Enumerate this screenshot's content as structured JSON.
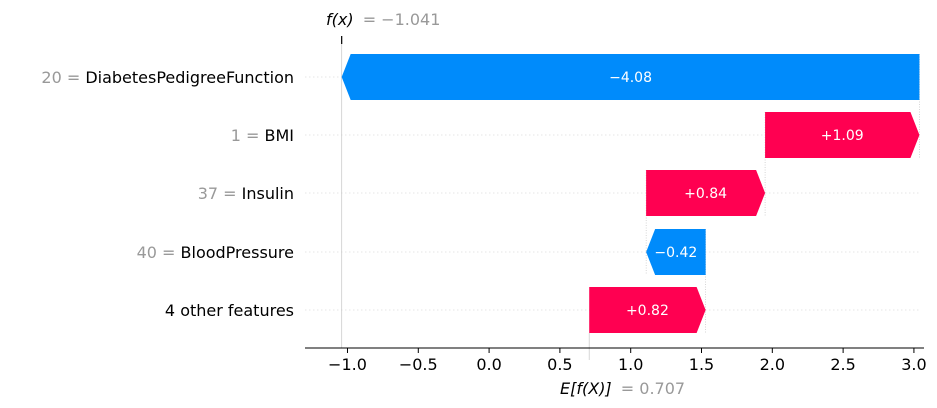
{
  "chart_data": {
    "type": "waterfall",
    "title": "",
    "xlabel": "",
    "ylabel": "",
    "xlim": [
      -1.3,
      3.05
    ],
    "x_ticks": [
      {
        "value": -1.0,
        "label": "−1.0"
      },
      {
        "value": -0.5,
        "label": "−0.5"
      },
      {
        "value": 0.0,
        "label": "0.0"
      },
      {
        "value": 0.5,
        "label": "0.5"
      },
      {
        "value": 1.0,
        "label": "1.0"
      },
      {
        "value": 1.5,
        "label": "1.5"
      },
      {
        "value": 2.0,
        "label": "2.0"
      },
      {
        "value": 2.5,
        "label": "2.5"
      },
      {
        "value": 3.0,
        "label": "3.0"
      }
    ],
    "base_value": 0.707,
    "base_label_prefix": "E[f(X)]",
    "base_label_value": "= 0.707",
    "output_value": -1.041,
    "output_label_prefix": "f(x)",
    "output_label_value": "= −1.041",
    "colors": {
      "positive": "#ff0051",
      "negative": "#008bfb",
      "muted": "#999999"
    },
    "features": [
      {
        "feature_value": "20 =",
        "name": "DiabetesPedigreeFunction",
        "contribution": -4.08,
        "start": 3.039,
        "end": -1.041,
        "label": "−4.08"
      },
      {
        "feature_value": "1 =",
        "name": "BMI",
        "contribution": 1.09,
        "start": 1.949,
        "end": 3.039,
        "label": "+1.09"
      },
      {
        "feature_value": "37 =",
        "name": "Insulin",
        "contribution": 0.84,
        "start": 1.109,
        "end": 1.949,
        "label": "+0.84"
      },
      {
        "feature_value": "40 =",
        "name": "BloodPressure",
        "contribution": -0.42,
        "start": 1.529,
        "end": 1.109,
        "label": "−0.42"
      },
      {
        "feature_value": "",
        "name": "4 other features",
        "contribution": 0.82,
        "start": 0.707,
        "end": 1.529,
        "label": "+0.82"
      }
    ]
  }
}
